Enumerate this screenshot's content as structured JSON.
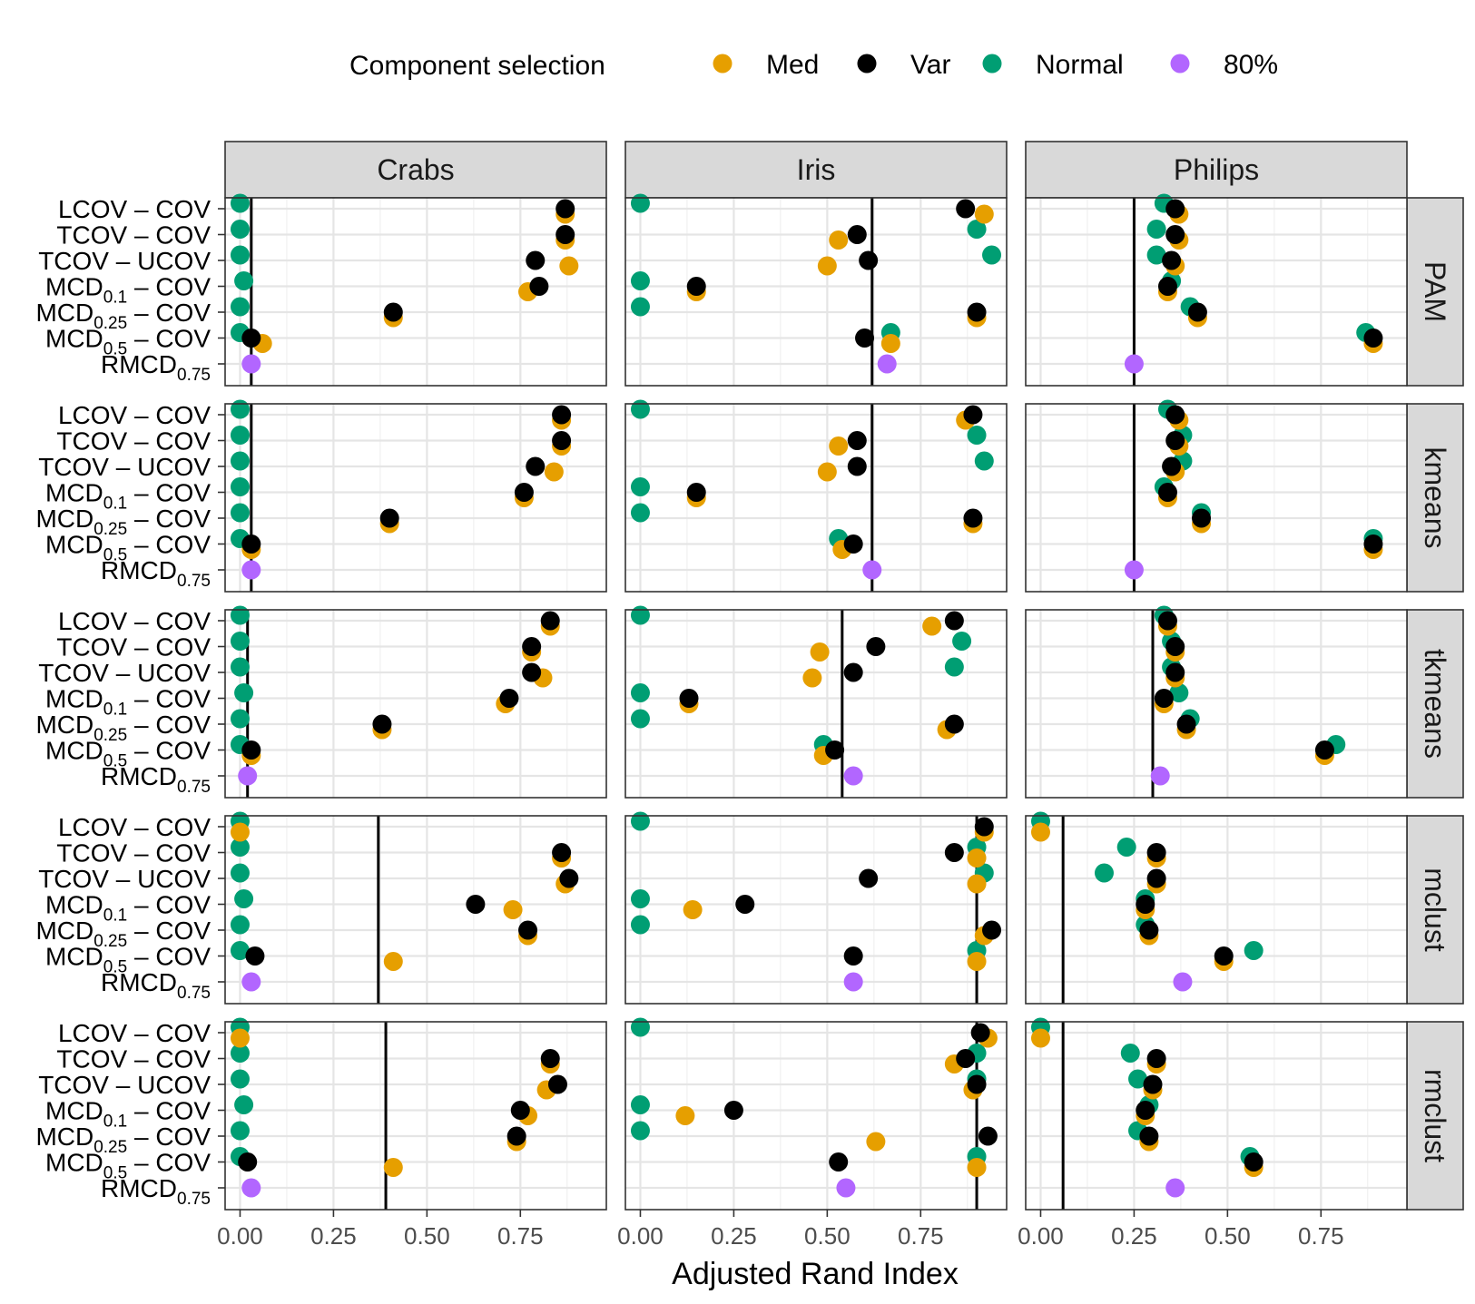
{
  "chart_data": {
    "type": "scatter",
    "title": "",
    "xlabel": "Adjusted Rand Index",
    "ylabel": "",
    "xlim": [
      -0.04,
      0.98
    ],
    "x_ticks": [
      0.0,
      0.25,
      0.5,
      0.75
    ],
    "x_tick_labels": [
      "0.00",
      "0.25",
      "0.50",
      "0.75"
    ],
    "grid": true,
    "legend": {
      "title": "Component selection",
      "position": "top",
      "entries": [
        {
          "key": "Med",
          "label": "Med",
          "color": "#E69F00"
        },
        {
          "key": "Var",
          "label": "Var",
          "color": "#000000"
        },
        {
          "key": "Normal",
          "label": "Normal",
          "color": "#009E73"
        },
        {
          "key": "80%",
          "label": "80%",
          "color": "#B266FF"
        }
      ]
    },
    "columns": [
      "Crabs",
      "Iris",
      "Philips"
    ],
    "rows": [
      "PAM",
      "kmeans",
      "tkmeans",
      "mclust",
      "rmclust"
    ],
    "methods": [
      {
        "base": "LCOV",
        "sub": "",
        "suffix": " – COV"
      },
      {
        "base": "TCOV",
        "sub": "",
        "suffix": " – COV"
      },
      {
        "base": "TCOV",
        "sub": "",
        "suffix": " – UCOV"
      },
      {
        "base": "MCD",
        "sub": "0.1",
        "suffix": " – COV"
      },
      {
        "base": "MCD",
        "sub": "0.25",
        "suffix": " – COV"
      },
      {
        "base": "MCD",
        "sub": "0.5",
        "suffix": " – COV"
      },
      {
        "base": "RMCD",
        "sub": "0.75",
        "suffix": ""
      }
    ],
    "panels": [
      {
        "row": "PAM",
        "col": "Crabs",
        "ref": 0.03,
        "Var": [
          0.87,
          0.87,
          0.79,
          0.8,
          0.41,
          0.03,
          null
        ],
        "Med": [
          0.87,
          0.87,
          0.88,
          0.77,
          0.41,
          0.06,
          null
        ],
        "Normal": [
          0.0,
          0.0,
          0.0,
          0.01,
          0.0,
          0.0,
          null
        ],
        "80%": [
          null,
          null,
          null,
          null,
          null,
          null,
          0.03
        ]
      },
      {
        "row": "PAM",
        "col": "Iris",
        "ref": 0.62,
        "Var": [
          0.87,
          0.58,
          0.61,
          0.15,
          0.9,
          0.6,
          null
        ],
        "Med": [
          0.92,
          0.53,
          0.5,
          0.15,
          0.9,
          0.67,
          null
        ],
        "Normal": [
          0.0,
          0.9,
          0.94,
          0.0,
          0.0,
          0.67,
          null
        ],
        "80%": [
          null,
          null,
          null,
          null,
          null,
          null,
          0.66
        ]
      },
      {
        "row": "PAM",
        "col": "Philips",
        "ref": 0.25,
        "Var": [
          0.36,
          0.36,
          0.35,
          0.34,
          0.42,
          0.89,
          null
        ],
        "Med": [
          0.37,
          0.37,
          0.36,
          0.34,
          0.42,
          0.89,
          null
        ],
        "Normal": [
          0.33,
          0.31,
          0.31,
          0.35,
          0.4,
          0.87,
          null
        ],
        "80%": [
          null,
          null,
          null,
          null,
          null,
          null,
          0.25
        ]
      },
      {
        "row": "kmeans",
        "col": "Crabs",
        "ref": 0.03,
        "Var": [
          0.86,
          0.86,
          0.79,
          0.76,
          0.4,
          0.03,
          null
        ],
        "Med": [
          0.86,
          0.86,
          0.84,
          0.76,
          0.4,
          0.03,
          null
        ],
        "Normal": [
          0.0,
          0.0,
          0.0,
          0.0,
          0.0,
          0.0,
          null
        ],
        "80%": [
          null,
          null,
          null,
          null,
          null,
          null,
          0.03
        ]
      },
      {
        "row": "kmeans",
        "col": "Iris",
        "ref": 0.62,
        "Var": [
          0.89,
          0.58,
          0.58,
          0.15,
          0.89,
          0.57,
          null
        ],
        "Med": [
          0.87,
          0.53,
          0.5,
          0.15,
          0.89,
          0.54,
          null
        ],
        "Normal": [
          0.0,
          0.9,
          0.92,
          0.0,
          0.0,
          0.53,
          null
        ],
        "80%": [
          null,
          null,
          null,
          null,
          null,
          null,
          0.62
        ]
      },
      {
        "row": "kmeans",
        "col": "Philips",
        "ref": 0.25,
        "Var": [
          0.36,
          0.36,
          0.35,
          0.34,
          0.43,
          0.89,
          null
        ],
        "Med": [
          0.37,
          0.37,
          0.36,
          0.34,
          0.43,
          0.89,
          null
        ],
        "Normal": [
          0.34,
          0.38,
          0.38,
          0.33,
          0.43,
          0.89,
          null
        ],
        "80%": [
          null,
          null,
          null,
          null,
          null,
          null,
          0.25
        ]
      },
      {
        "row": "tkmeans",
        "col": "Crabs",
        "ref": 0.02,
        "Var": [
          0.83,
          0.78,
          0.78,
          0.72,
          0.38,
          0.03,
          null
        ],
        "Med": [
          0.83,
          0.78,
          0.81,
          0.71,
          0.38,
          0.03,
          null
        ],
        "Normal": [
          0.0,
          0.0,
          0.0,
          0.01,
          0.0,
          0.0,
          null
        ],
        "80%": [
          null,
          null,
          null,
          null,
          null,
          null,
          0.02
        ]
      },
      {
        "row": "tkmeans",
        "col": "Iris",
        "ref": 0.54,
        "Var": [
          0.84,
          0.63,
          0.57,
          0.13,
          0.84,
          0.52,
          null
        ],
        "Med": [
          0.78,
          0.48,
          0.46,
          0.13,
          0.82,
          0.49,
          null
        ],
        "Normal": [
          0.0,
          0.86,
          0.84,
          0.0,
          0.0,
          0.49,
          null
        ],
        "80%": [
          null,
          null,
          null,
          null,
          null,
          null,
          0.57
        ]
      },
      {
        "row": "tkmeans",
        "col": "Philips",
        "ref": 0.3,
        "Var": [
          0.34,
          0.36,
          0.36,
          0.33,
          0.39,
          0.76,
          null
        ],
        "Med": [
          0.34,
          0.36,
          0.36,
          0.33,
          0.39,
          0.76,
          null
        ],
        "Normal": [
          0.33,
          0.35,
          0.35,
          0.37,
          0.4,
          0.79,
          null
        ],
        "80%": [
          null,
          null,
          null,
          null,
          null,
          null,
          0.32
        ]
      },
      {
        "row": "mclust",
        "col": "Crabs",
        "ref": 0.37,
        "Var": [
          null,
          0.86,
          0.88,
          0.63,
          0.77,
          0.04,
          null
        ],
        "Med": [
          0.0,
          0.86,
          0.87,
          0.73,
          0.77,
          0.41,
          null
        ],
        "Normal": [
          0.0,
          0.0,
          0.0,
          0.01,
          0.0,
          0.0,
          null
        ],
        "80%": [
          null,
          null,
          null,
          null,
          null,
          null,
          0.03
        ]
      },
      {
        "row": "mclust",
        "col": "Iris",
        "ref": 0.9,
        "Var": [
          0.92,
          0.84,
          0.61,
          0.28,
          0.94,
          0.57,
          null
        ],
        "Med": [
          0.92,
          0.9,
          0.9,
          0.14,
          0.92,
          0.9,
          null
        ],
        "Normal": [
          0.0,
          0.9,
          0.92,
          0.0,
          0.0,
          0.9,
          null
        ],
        "80%": [
          null,
          null,
          null,
          null,
          null,
          null,
          0.57
        ]
      },
      {
        "row": "mclust",
        "col": "Philips",
        "ref": 0.06,
        "Var": [
          null,
          0.31,
          0.31,
          0.28,
          0.29,
          0.49,
          null
        ],
        "Med": [
          0.0,
          0.31,
          0.31,
          0.28,
          0.29,
          0.49,
          null
        ],
        "Normal": [
          0.0,
          0.23,
          0.17,
          0.28,
          0.28,
          0.57,
          null
        ],
        "80%": [
          null,
          null,
          null,
          null,
          null,
          null,
          0.38
        ]
      },
      {
        "row": "rmclust",
        "col": "Crabs",
        "ref": 0.39,
        "Var": [
          null,
          0.83,
          0.85,
          0.75,
          0.74,
          0.02,
          null
        ],
        "Med": [
          0.0,
          0.83,
          0.82,
          0.77,
          0.74,
          0.41,
          null
        ],
        "Normal": [
          0.0,
          0.0,
          0.0,
          0.01,
          0.0,
          0.0,
          null
        ],
        "80%": [
          null,
          null,
          null,
          null,
          null,
          null,
          0.03
        ]
      },
      {
        "row": "rmclust",
        "col": "Iris",
        "ref": 0.9,
        "Var": [
          0.91,
          0.87,
          0.9,
          0.25,
          0.93,
          0.53,
          null
        ],
        "Med": [
          0.93,
          0.84,
          0.89,
          0.12,
          0.63,
          0.9,
          null
        ],
        "Normal": [
          0.0,
          0.9,
          0.9,
          0.0,
          0.0,
          0.9,
          null
        ],
        "80%": [
          null,
          null,
          null,
          null,
          null,
          null,
          0.55
        ]
      },
      {
        "row": "rmclust",
        "col": "Philips",
        "ref": 0.06,
        "Var": [
          null,
          0.31,
          0.3,
          0.28,
          0.29,
          0.57,
          null
        ],
        "Med": [
          0.0,
          0.31,
          0.3,
          0.28,
          0.29,
          0.57,
          null
        ],
        "Normal": [
          0.0,
          0.24,
          0.26,
          0.29,
          0.26,
          0.56,
          null
        ],
        "80%": [
          null,
          null,
          null,
          null,
          null,
          null,
          0.36
        ]
      }
    ]
  }
}
